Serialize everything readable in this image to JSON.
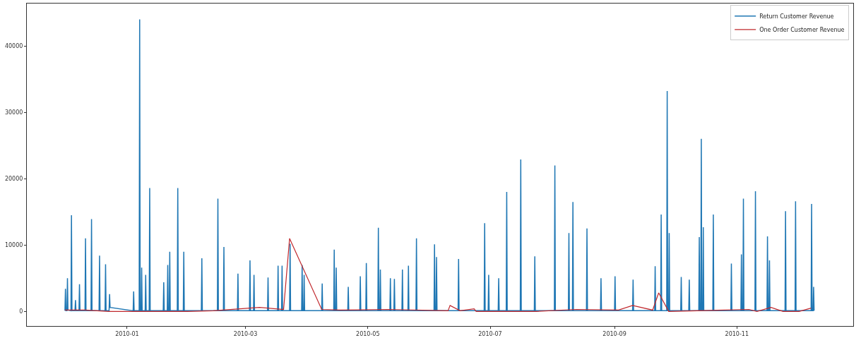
{
  "chart_data": {
    "type": "line",
    "xlim": [
      "2009-11-12",
      "2010-12-29"
    ],
    "ylim": [
      -2200,
      46400
    ],
    "xticks": [
      {
        "value": "2010-01-01",
        "label": "2010-01"
      },
      {
        "value": "2010-03-01",
        "label": "2010-03"
      },
      {
        "value": "2010-05-01",
        "label": "2010-05"
      },
      {
        "value": "2010-07-01",
        "label": "2010-07"
      },
      {
        "value": "2010-09-01",
        "label": "2010-09"
      },
      {
        "value": "2010-11-01",
        "label": "2010-11"
      }
    ],
    "yticks": [
      0,
      10000,
      20000,
      30000,
      40000
    ],
    "legend": "top right",
    "line_style": "solid",
    "marker": "none",
    "series": [
      {
        "name": "Return Customer Revenue",
        "color": "#1f77b4",
        "x": [
          "2009-12-01",
          "2009-12-01T06:00",
          "2009-12-01T12:00",
          "2009-12-02",
          "2009-12-02T06:00",
          "2009-12-02T12:00",
          "2009-12-04",
          "2009-12-04T06:00",
          "2009-12-04T12:00",
          "2009-12-06",
          "2009-12-06T06:00",
          "2009-12-06T12:00",
          "2009-12-08",
          "2009-12-08T06:00",
          "2009-12-08T12:00",
          "2009-12-11",
          "2009-12-11T06:00",
          "2009-12-11T12:00",
          "2009-12-14",
          "2009-12-14T06:00",
          "2009-12-14T12:00",
          "2009-12-18",
          "2009-12-18T06:00",
          "2009-12-18T12:00",
          "2009-12-21",
          "2009-12-21T06:00",
          "2009-12-21T12:00",
          "2009-12-23",
          "2009-12-23T06:00",
          "2009-12-23T12:00",
          "2010-01-04",
          "2010-01-04T06:00",
          "2010-01-04T12:00",
          "2010-01-07",
          "2010-01-07T06:00",
          "2010-01-07T12:00",
          "2010-01-08",
          "2010-01-08T06:00",
          "2010-01-08T12:00",
          "2010-01-10",
          "2010-01-10T06:00",
          "2010-01-10T12:00",
          "2010-01-12",
          "2010-01-12T06:00",
          "2010-01-12T12:00",
          "2010-01-19",
          "2010-01-19T06:00",
          "2010-01-19T12:00",
          "2010-01-21",
          "2010-01-21T06:00",
          "2010-01-21T12:00",
          "2010-01-22",
          "2010-01-22T06:00",
          "2010-01-22T12:00",
          "2010-01-26",
          "2010-01-26T06:00",
          "2010-01-26T12:00",
          "2010-01-29",
          "2010-01-29T06:00",
          "2010-01-29T12:00",
          "2010-02-07",
          "2010-02-07T06:00",
          "2010-02-07T12:00",
          "2010-02-15",
          "2010-02-15T06:00",
          "2010-02-15T12:00",
          "2010-02-18",
          "2010-02-18T06:00",
          "2010-02-18T12:00",
          "2010-02-25",
          "2010-02-25T06:00",
          "2010-02-25T12:00",
          "2010-03-03",
          "2010-03-03T06:00",
          "2010-03-03T12:00",
          "2010-03-05",
          "2010-03-05T06:00",
          "2010-03-05T12:00",
          "2010-03-12",
          "2010-03-12T06:00",
          "2010-03-12T12:00",
          "2010-03-17",
          "2010-03-17T06:00",
          "2010-03-17T12:00",
          "2010-03-19",
          "2010-03-19T06:00",
          "2010-03-19T12:00",
          "2010-03-23",
          "2010-03-23T06:00",
          "2010-03-23T12:00",
          "2010-03-29",
          "2010-03-29T06:00",
          "2010-03-29T12:00",
          "2010-03-30",
          "2010-03-30T06:00",
          "2010-03-30T12:00",
          "2010-04-08",
          "2010-04-08T06:00",
          "2010-04-08T12:00",
          "2010-04-14",
          "2010-04-14T06:00",
          "2010-04-14T12:00",
          "2010-04-15",
          "2010-04-15T06:00",
          "2010-04-15T12:00",
          "2010-04-21",
          "2010-04-21T06:00",
          "2010-04-21T12:00",
          "2010-04-27",
          "2010-04-27T06:00",
          "2010-04-27T12:00",
          "2010-04-30",
          "2010-04-30T06:00",
          "2010-04-30T12:00",
          "2010-05-06",
          "2010-05-06T06:00",
          "2010-05-06T12:00",
          "2010-05-07",
          "2010-05-07T06:00",
          "2010-05-07T12:00",
          "2010-05-12",
          "2010-05-12T06:00",
          "2010-05-12T12:00",
          "2010-05-14",
          "2010-05-14T06:00",
          "2010-05-14T12:00",
          "2010-05-18",
          "2010-05-18T06:00",
          "2010-05-18T12:00",
          "2010-05-21",
          "2010-05-21T06:00",
          "2010-05-21T12:00",
          "2010-05-25",
          "2010-05-25T06:00",
          "2010-05-25T12:00",
          "2010-06-03",
          "2010-06-03T06:00",
          "2010-06-03T12:00",
          "2010-06-04",
          "2010-06-04T06:00",
          "2010-06-04T12:00",
          "2010-06-15",
          "2010-06-15T06:00",
          "2010-06-15T12:00",
          "2010-06-28",
          "2010-06-28T06:00",
          "2010-06-28T12:00",
          "2010-06-30",
          "2010-06-30T06:00",
          "2010-06-30T12:00",
          "2010-07-05",
          "2010-07-05T06:00",
          "2010-07-05T12:00",
          "2010-07-09",
          "2010-07-09T06:00",
          "2010-07-09T12:00",
          "2010-07-16",
          "2010-07-16T06:00",
          "2010-07-16T12:00",
          "2010-07-23",
          "2010-07-23T06:00",
          "2010-07-23T12:00",
          "2010-08-02",
          "2010-08-02T06:00",
          "2010-08-02T12:00",
          "2010-08-09",
          "2010-08-09T06:00",
          "2010-08-09T12:00",
          "2010-08-11",
          "2010-08-11T06:00",
          "2010-08-11T12:00",
          "2010-08-18",
          "2010-08-18T06:00",
          "2010-08-18T12:00",
          "2010-08-25",
          "2010-08-25T06:00",
          "2010-08-25T12:00",
          "2010-09-01",
          "2010-09-01T06:00",
          "2010-09-01T12:00",
          "2010-09-10",
          "2010-09-10T06:00",
          "2010-09-10T12:00",
          "2010-09-21",
          "2010-09-21T06:00",
          "2010-09-21T12:00",
          "2010-09-24",
          "2010-09-24T06:00",
          "2010-09-24T12:00",
          "2010-09-27",
          "2010-09-27T06:00",
          "2010-09-27T12:00",
          "2010-09-28",
          "2010-09-28T06:00",
          "2010-09-28T12:00",
          "2010-10-04",
          "2010-10-04T06:00",
          "2010-10-04T12:00",
          "2010-10-08",
          "2010-10-08T06:00",
          "2010-10-08T12:00",
          "2010-10-13",
          "2010-10-13T06:00",
          "2010-10-13T12:00",
          "2010-10-14",
          "2010-10-14T06:00",
          "2010-10-14T12:00",
          "2010-10-15",
          "2010-10-15T06:00",
          "2010-10-15T12:00",
          "2010-10-20",
          "2010-10-20T06:00",
          "2010-10-20T12:00",
          "2010-10-29",
          "2010-10-29T06:00",
          "2010-10-29T12:00",
          "2010-11-03",
          "2010-11-03T06:00",
          "2010-11-03T12:00",
          "2010-11-04",
          "2010-11-04T06:00",
          "2010-11-04T12:00",
          "2010-11-10",
          "2010-11-10T06:00",
          "2010-11-10T12:00",
          "2010-11-16",
          "2010-11-16T06:00",
          "2010-11-16T12:00",
          "2010-11-17",
          "2010-11-17T06:00",
          "2010-11-17T12:00",
          "2010-11-25",
          "2010-11-25T06:00",
          "2010-11-25T12:00",
          "2010-11-30",
          "2010-11-30T06:00",
          "2010-11-30T12:00",
          "2010-12-08",
          "2010-12-08T06:00",
          "2010-12-08T12:00",
          "2010-12-09",
          "2010-12-09T06:00",
          "2010-12-09T12:00"
        ],
        "values": [
          100,
          3400,
          100,
          100,
          5000,
          200,
          100,
          14500,
          100,
          100,
          1700,
          100,
          100,
          4100,
          100,
          100,
          11000,
          100,
          100,
          13900,
          100,
          100,
          8400,
          100,
          100,
          7100,
          100,
          100,
          2600,
          600,
          100,
          3000,
          100,
          100,
          44000,
          100,
          100,
          6600,
          100,
          100,
          5500,
          100,
          100,
          18600,
          100,
          100,
          4400,
          100,
          100,
          7000,
          100,
          100,
          9000,
          100,
          100,
          18600,
          100,
          100,
          9000,
          100,
          100,
          8000,
          100,
          100,
          17000,
          100,
          100,
          9700,
          100,
          100,
          5700,
          100,
          100,
          7700,
          100,
          100,
          5500,
          100,
          100,
          5100,
          100,
          100,
          6900,
          100,
          100,
          6900,
          100,
          100,
          10200,
          100,
          100,
          7000,
          100,
          100,
          5500,
          100,
          100,
          4200,
          100,
          100,
          9300,
          100,
          100,
          6600,
          100,
          100,
          3700,
          100,
          100,
          5300,
          100,
          100,
          7300,
          100,
          100,
          12600,
          100,
          100,
          6300,
          100,
          100,
          5000,
          100,
          100,
          4900,
          100,
          100,
          6300,
          100,
          100,
          6900,
          100,
          100,
          11000,
          100,
          100,
          10100,
          100,
          100,
          8200,
          100,
          100,
          7900,
          100,
          100,
          13300,
          100,
          100,
          5500,
          100,
          100,
          5000,
          100,
          100,
          18000,
          100,
          100,
          22900,
          100,
          100,
          8300,
          100,
          100,
          22000,
          100,
          100,
          11800,
          100,
          100,
          16500,
          100,
          100,
          12500,
          100,
          100,
          5000,
          100,
          100,
          5300,
          100,
          100,
          4800,
          100,
          100,
          6800,
          100,
          100,
          14600,
          100,
          100,
          33200,
          100,
          100,
          11800,
          100,
          100,
          5200,
          100,
          100,
          4800,
          100,
          100,
          11200,
          100,
          100,
          26000,
          100,
          100,
          12700,
          100,
          100,
          14600,
          100,
          100,
          7200,
          100,
          100,
          8600,
          100,
          100,
          17000,
          100,
          100,
          18100,
          100,
          100,
          11300,
          100,
          100,
          7700,
          100,
          100,
          15100,
          100,
          100,
          16600,
          100,
          100,
          16200,
          100,
          100,
          3700,
          100
        ]
      },
      {
        "name": "One Order Customer Revenue",
        "color": "#c0282d",
        "x": [
          "2009-12-01",
          "2009-12-11",
          "2009-12-23",
          "2010-01-04",
          "2010-01-31",
          "2010-02-13",
          "2010-03-08",
          "2010-03-20",
          "2010-03-23",
          "2010-04-08",
          "2010-04-17",
          "2010-05-11",
          "2010-06-10",
          "2010-06-11",
          "2010-06-16",
          "2010-06-23",
          "2010-06-24",
          "2010-07-24",
          "2010-08-13",
          "2010-09-03",
          "2010-09-10",
          "2010-09-20",
          "2010-09-23",
          "2010-09-28",
          "2010-11-07",
          "2010-11-11",
          "2010-11-18",
          "2010-11-24",
          "2010-12-02",
          "2010-12-08"
        ],
        "values": [
          200,
          200,
          0,
          0,
          0,
          100,
          600,
          300,
          11000,
          300,
          200,
          300,
          100,
          900,
          100,
          400,
          0,
          0,
          300,
          200,
          900,
          200,
          2800,
          0,
          300,
          0,
          600,
          0,
          0,
          500
        ]
      }
    ]
  }
}
